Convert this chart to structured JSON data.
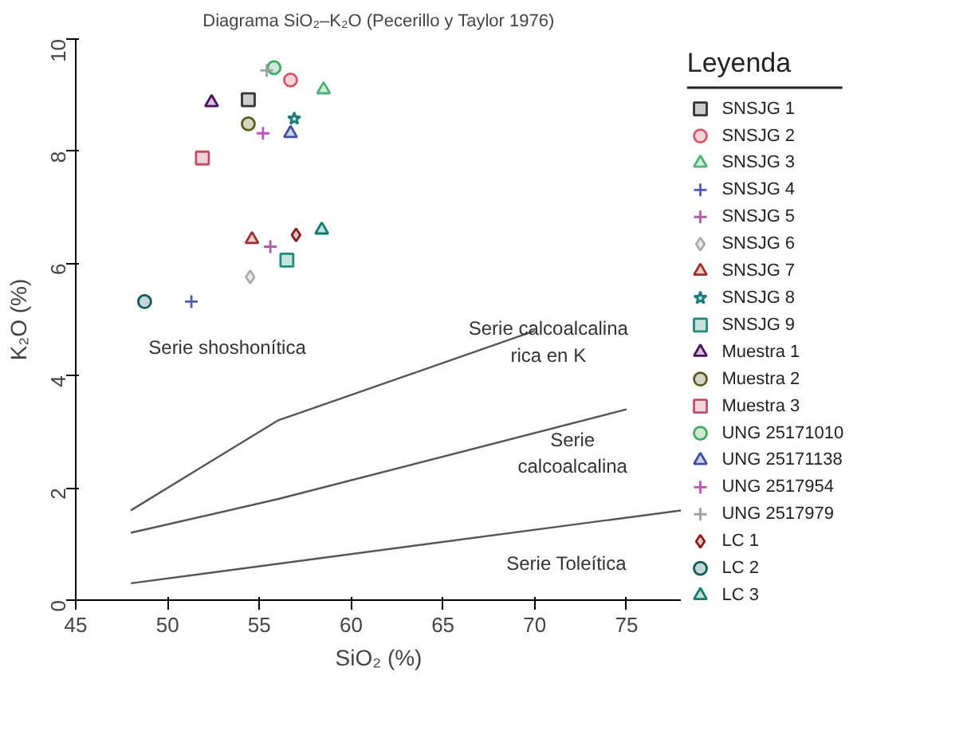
{
  "chart_data": {
    "type": "scatter",
    "title": "Diagrama SiO₂–K₂O (Pecerillo y Taylor 1976)",
    "xlabel": "SiO₂ (%)",
    "ylabel": "K₂O (%)",
    "legend_title": "Leyenda",
    "legend": "right",
    "grid": false,
    "xlim": [
      45,
      78
    ],
    "ylim": [
      0,
      10
    ],
    "xticks": [
      45,
      50,
      55,
      60,
      65,
      70,
      75
    ],
    "yticks": [
      0,
      2,
      4,
      6,
      8,
      10
    ],
    "series": [
      {
        "name": "SNSJG  1",
        "color": "#333333",
        "marker": "square",
        "x": [
          54.4
        ],
        "values": [
          8.92
        ]
      },
      {
        "name": "SNSJG  2",
        "color": "#d9546a",
        "marker": "circle",
        "x": [
          56.7
        ],
        "values": [
          9.27
        ]
      },
      {
        "name": "SNSJG  3",
        "color": "#4cb374",
        "marker": "triangle",
        "x": [
          58.5
        ],
        "values": [
          9.1
        ]
      },
      {
        "name": "SNSJG  4",
        "color": "#4e5ab8",
        "marker": "cross",
        "x": [
          51.3
        ],
        "values": [
          5.32
        ]
      },
      {
        "name": "SNSJG  5",
        "color": "#b05aa8",
        "marker": "cross",
        "x": [
          55.6
        ],
        "values": [
          6.3
        ]
      },
      {
        "name": "SNSJG  6",
        "color": "#aaaaaa",
        "marker": "diamond",
        "x": [
          54.5
        ],
        "values": [
          5.76
        ]
      },
      {
        "name": "SNSJG  7",
        "color": "#a03030",
        "marker": "triangle",
        "x": [
          54.6
        ],
        "values": [
          6.43
        ]
      },
      {
        "name": "SNSJG  8",
        "color": "#1e7b7b",
        "marker": "star",
        "x": [
          56.9
        ],
        "values": [
          8.58
        ]
      },
      {
        "name": "SNSJG  9",
        "color": "#1e8a78",
        "marker": "square",
        "x": [
          56.5
        ],
        "values": [
          6.06
        ]
      },
      {
        "name": "Muestra 1",
        "color": "#4b1060",
        "marker": "triangle",
        "x": [
          52.4
        ],
        "values": [
          8.87
        ]
      },
      {
        "name": "Muestra 2",
        "color": "#5a5a20",
        "marker": "circle",
        "x": [
          54.4
        ],
        "values": [
          8.49
        ]
      },
      {
        "name": "Muestra 3",
        "color": "#c0506a",
        "marker": "square",
        "x": [
          51.9
        ],
        "values": [
          7.88
        ]
      },
      {
        "name": "UNG 25171010",
        "color": "#40a860",
        "marker": "circle",
        "x": [
          55.8
        ],
        "values": [
          9.49
        ]
      },
      {
        "name": "UNG 25171138",
        "color": "#4050a8",
        "marker": "triangle",
        "x": [
          56.7
        ],
        "values": [
          8.32
        ]
      },
      {
        "name": "UNG 2517954",
        "color": "#c050c0",
        "marker": "cross",
        "x": [
          55.2
        ],
        "values": [
          8.32
        ]
      },
      {
        "name": "UNG 2517979",
        "color": "#a0a0a0",
        "marker": "cross",
        "x": [
          55.4
        ],
        "values": [
          9.44
        ]
      },
      {
        "name": "LC  1",
        "color": "#8b1a1a",
        "marker": "diamond",
        "x": [
          57.0
        ],
        "values": [
          6.51
        ]
      },
      {
        "name": "LC  2",
        "color": "#0e5a5a",
        "marker": "circle",
        "x": [
          48.75
        ],
        "values": [
          5.32
        ]
      },
      {
        "name": "LC  3",
        "color": "#117a6a",
        "marker": "triangle",
        "x": [
          58.4
        ],
        "values": [
          6.6
        ]
      },
      {
        "type": "line",
        "color": "#555555",
        "x": [
          48,
          56,
          70
        ],
        "values": [
          1.6,
          3.2,
          4.8
        ]
      },
      {
        "type": "line",
        "color": "#555555",
        "x": [
          48,
          56,
          75
        ],
        "values": [
          1.2,
          1.8,
          3.4
        ]
      },
      {
        "type": "line",
        "color": "#555555",
        "x": [
          48,
          78
        ],
        "values": [
          0.3,
          1.6
        ]
      }
    ],
    "annotations": [
      "Serie shoshonítica",
      "Serie calcoalcalina\nrica en K",
      "Serie\ncalcoalcalina",
      "Serie Toleítica"
    ]
  }
}
